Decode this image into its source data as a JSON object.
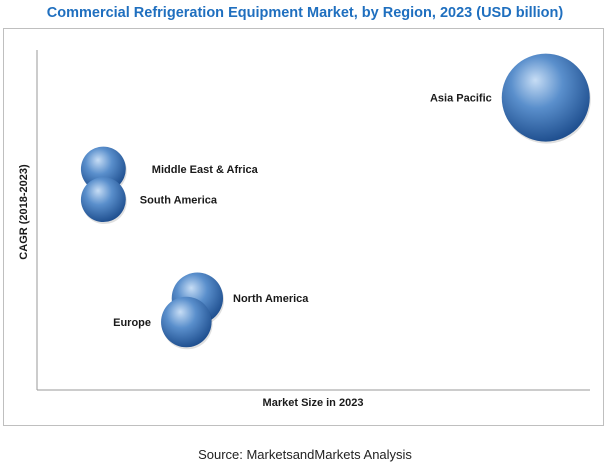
{
  "title": "Commercial Refrigeration Equipment Market, by Region, 2023 (USD billion)",
  "source": "Source: MarketsandMarkets Analysis",
  "colors": {
    "title": "#1f6fbf",
    "bubble_light": "#b9d3f0",
    "bubble_mid": "#4f86c6",
    "bubble_dark": "#1f4f8f"
  },
  "chart_data": {
    "type": "bubble",
    "title": "Commercial Refrigeration Equipment Market, by Region, 2023 (USD billion)",
    "xlabel": "Market Size in 2023",
    "ylabel": "CAGR (2018-2023)",
    "x_ticks_shown": false,
    "y_ticks_shown": false,
    "grid": false,
    "legend": "none",
    "xlim": [
      0,
      100
    ],
    "ylim": [
      0,
      100
    ],
    "points": [
      {
        "label": "Asia Pacific",
        "x": 92,
        "y": 86,
        "size": 100
      },
      {
        "label": "Middle East & Africa",
        "x": 12,
        "y": 65,
        "size": 26
      },
      {
        "label": "South America",
        "x": 12,
        "y": 56,
        "size": 26
      },
      {
        "label": "North America",
        "x": 29,
        "y": 27,
        "size": 34
      },
      {
        "label": "Europe",
        "x": 27,
        "y": 20,
        "size": 33
      }
    ]
  }
}
